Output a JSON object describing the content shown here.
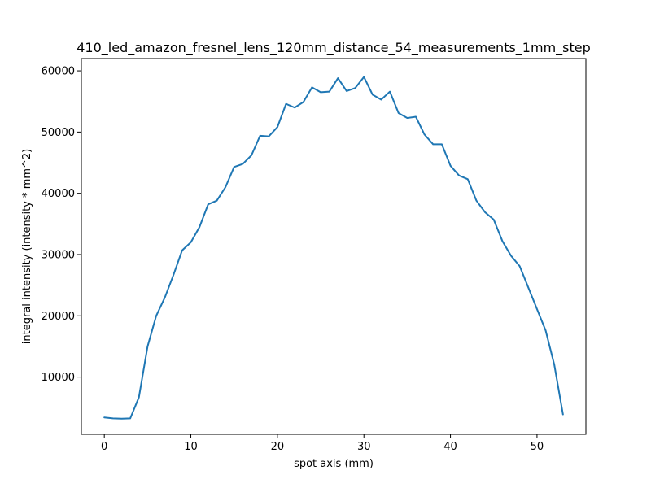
{
  "chart_data": {
    "type": "line",
    "title": "410_led_amazon_fresnel_lens_120mm_distance_54_measurements_1mm_step",
    "xlabel": "spot axis (mm)",
    "ylabel": "integral intensity (intensity * mm^2)",
    "xlim": [
      -2.65,
      55.65
    ],
    "ylim": [
      650,
      62000
    ],
    "xticks": [
      0,
      10,
      20,
      30,
      40,
      50
    ],
    "yticks": [
      10000,
      20000,
      30000,
      40000,
      50000,
      60000
    ],
    "grid": false,
    "legend": "none",
    "line_color": "#1f77b4",
    "series": [
      {
        "x": [
          0,
          1,
          2,
          3,
          4,
          5,
          6,
          7,
          8,
          9,
          10,
          11,
          12,
          13,
          14,
          15,
          16,
          17,
          18,
          19,
          20,
          21,
          22,
          23,
          24,
          25,
          26,
          27,
          28,
          29,
          30,
          31,
          32,
          33,
          34,
          35,
          36,
          37,
          38,
          39,
          40,
          41,
          42,
          43,
          44,
          45,
          46,
          47,
          48,
          49,
          50,
          51,
          52,
          53
        ],
        "values": [
          3400,
          3250,
          3200,
          3250,
          6700,
          15000,
          20000,
          23000,
          26700,
          30700,
          32000,
          34500,
          38200,
          38800,
          41000,
          44300,
          44800,
          46200,
          49400,
          49300,
          50800,
          54600,
          54000,
          54900,
          57300,
          56500,
          56600,
          58800,
          56700,
          57200,
          59000,
          56100,
          55300,
          56600,
          53100,
          52300,
          52500,
          49600,
          48000,
          48000,
          44500,
          42900,
          42300,
          38800,
          36900,
          35700,
          32200,
          29800,
          28100,
          24600,
          21100,
          17600,
          12000,
          3900
        ]
      }
    ]
  }
}
